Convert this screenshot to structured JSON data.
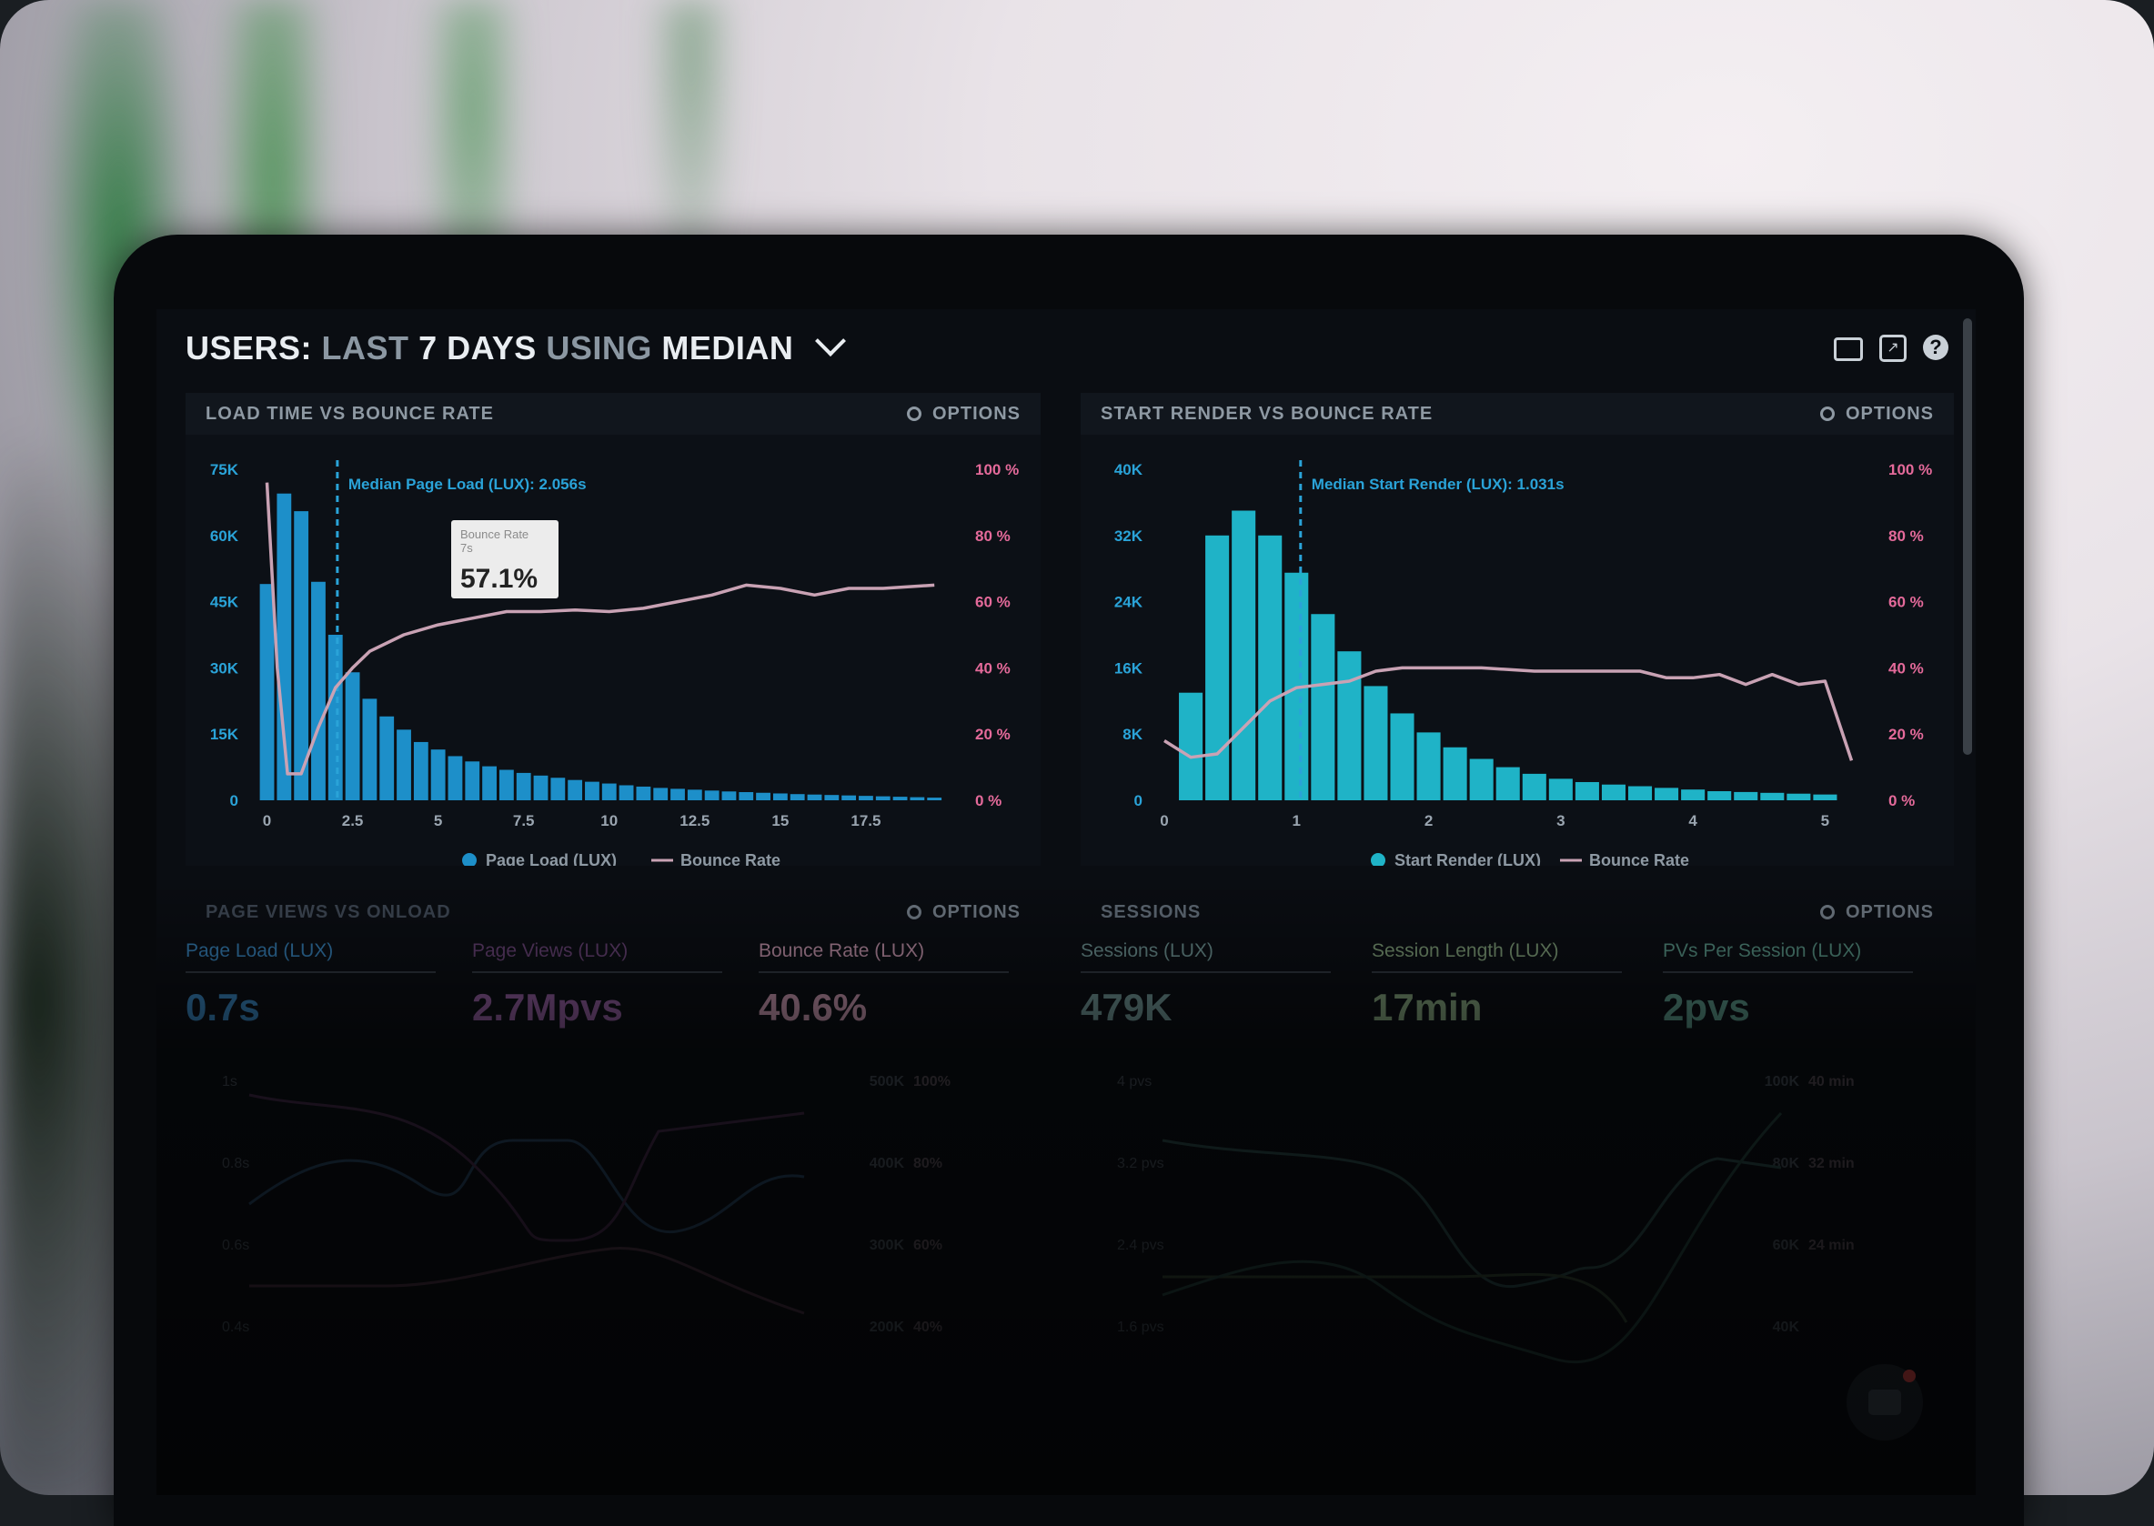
{
  "dashboard": {
    "title_parts": {
      "users": "USERS:",
      "range": "LAST",
      "days": "7 DAYS",
      "using": "USING",
      "median": "MEDIAN"
    }
  },
  "colors": {
    "bar": "#1d8fc9",
    "bar2": "#1fb3c7",
    "line": "#c9a2b4",
    "axis_left": "#2aa3d8",
    "axis_right": "#e46a9a"
  },
  "panels": {
    "load_time": {
      "title": "LOAD TIME VS BOUNCE RATE",
      "options": "OPTIONS",
      "median_label": "Median Page Load (LUX): 2.056s",
      "tooltip": {
        "label": "Bounce Rate",
        "sub": "7s",
        "value": "57.1%"
      },
      "legend": {
        "bars": "Page Load (LUX)",
        "line": "Bounce Rate"
      }
    },
    "start_render": {
      "title": "START RENDER VS BOUNCE RATE",
      "options": "OPTIONS",
      "median_label": "Median Start Render (LUX): 1.031s",
      "legend": {
        "bars": "Start Render (LUX)",
        "line": "Bounce Rate"
      }
    },
    "page_views": {
      "title": "PAGE VIEWS VS ONLOAD",
      "options": "OPTIONS",
      "metrics": [
        {
          "label": "Page Load (LUX)",
          "value": "0.7s",
          "color": "#2f6f9f"
        },
        {
          "label": "Page Views (LUX)",
          "value": "2.7Mpvs",
          "color": "#7a4f86"
        },
        {
          "label": "Bounce Rate (LUX)",
          "value": "40.6%",
          "color": "#a77f93"
        }
      ],
      "y_left": [
        "1s",
        "0.8s",
        "0.6s",
        "0.4s"
      ],
      "y_mid": [
        "500K",
        "400K",
        "300K",
        "200K"
      ],
      "y_right": [
        "100%",
        "80%",
        "60%",
        "40%"
      ]
    },
    "sessions": {
      "title": "SESSIONS",
      "options": "OPTIONS",
      "metrics": [
        {
          "label": "Sessions (LUX)",
          "value": "479K",
          "color": "#5f7f7f"
        },
        {
          "label": "Session Length (LUX)",
          "value": "17min",
          "color": "#6f8a6a"
        },
        {
          "label": "PVs Per Session (LUX)",
          "value": "2pvs",
          "color": "#4c7f73"
        }
      ],
      "y_left": [
        "4 pvs",
        "3.2 pvs",
        "2.4 pvs",
        "1.6 pvs"
      ],
      "y_mid": [
        "100K",
        "80K",
        "60K",
        "40K"
      ],
      "y_right": [
        "40 min",
        "32 min",
        "24 min"
      ]
    }
  },
  "chart_data": [
    {
      "type": "bar",
      "title": "LOAD TIME VS BOUNCE RATE",
      "x_ticks": [
        "0",
        "2.5",
        "5",
        "7.5",
        "10",
        "12.5",
        "15",
        "17.5"
      ],
      "y_left_ticks": [
        "0",
        "15K",
        "30K",
        "45K",
        "60K",
        "75K"
      ],
      "y_right_ticks": [
        "0 %",
        "20 %",
        "40 %",
        "60 %",
        "80 %",
        "100 %"
      ],
      "ylim": [
        0,
        75000
      ],
      "xlim": [
        -0.2,
        20
      ],
      "bar_width": 0.5,
      "bar_x": [
        0,
        0.5,
        1,
        1.5,
        2,
        2.5,
        3,
        3.5,
        4,
        4.5,
        5,
        5.5,
        6,
        6.5,
        7,
        7.5,
        8,
        8.5,
        9,
        9.5,
        10,
        10.5,
        11,
        11.5,
        12,
        12.5,
        13,
        13.5,
        14,
        14.5,
        15,
        15.5,
        16,
        16.5,
        17,
        17.5,
        18,
        18.5,
        19,
        19.5
      ],
      "series": [
        {
          "name": "Page Load (LUX)",
          "kind": "bar",
          "values": [
            49000,
            69500,
            65500,
            49500,
            37500,
            29000,
            23000,
            19000,
            16000,
            13200,
            11500,
            10000,
            8800,
            7700,
            6900,
            6200,
            5600,
            5100,
            4600,
            4200,
            3800,
            3400,
            3100,
            2800,
            2600,
            2400,
            2200,
            2000,
            1850,
            1700,
            1550,
            1400,
            1300,
            1200,
            1100,
            1000,
            900,
            800,
            700,
            600
          ]
        },
        {
          "name": "Bounce Rate",
          "kind": "line",
          "axis": "right",
          "x": [
            0,
            0.3,
            0.6,
            1,
            1.5,
            2,
            2.5,
            3,
            4,
            5,
            6,
            7,
            8,
            9,
            10,
            11,
            12,
            13,
            14,
            15,
            16,
            17,
            18,
            19.5
          ],
          "values": [
            96,
            40,
            8,
            8,
            22,
            34,
            40,
            45,
            50,
            53,
            55,
            57,
            57,
            57.5,
            57,
            58,
            60,
            62,
            65,
            64,
            62,
            64,
            64,
            65
          ]
        }
      ],
      "median_x": 2.056
    },
    {
      "type": "bar",
      "title": "START RENDER VS BOUNCE RATE",
      "x_ticks": [
        "0",
        "1",
        "2",
        "3",
        "4",
        "5"
      ],
      "y_left_ticks": [
        "0",
        "8K",
        "16K",
        "24K",
        "32K",
        "40K"
      ],
      "y_right_ticks": [
        "0 %",
        "20 %",
        "40 %",
        "60 %",
        "80 %",
        "100 %"
      ],
      "ylim": [
        0,
        40000
      ],
      "xlim": [
        0,
        5.3
      ],
      "bar_width": 0.2,
      "bar_x": [
        0.2,
        0.4,
        0.6,
        0.8,
        1.0,
        1.2,
        1.4,
        1.6,
        1.8,
        2.0,
        2.2,
        2.4,
        2.6,
        2.8,
        3.0,
        3.2,
        3.4,
        3.6,
        3.8,
        4.0,
        4.2,
        4.4,
        4.6,
        4.8,
        5.0
      ],
      "series": [
        {
          "name": "Start Render (LUX)",
          "kind": "bar",
          "values": [
            13000,
            32000,
            35000,
            32000,
            27500,
            22500,
            18000,
            13800,
            10500,
            8200,
            6400,
            5000,
            4000,
            3200,
            2600,
            2200,
            1900,
            1700,
            1500,
            1300,
            1100,
            1000,
            900,
            800,
            700
          ]
        },
        {
          "name": "Bounce Rate",
          "kind": "line",
          "axis": "right",
          "x": [
            0,
            0.2,
            0.4,
            0.6,
            0.8,
            1.0,
            1.2,
            1.4,
            1.6,
            1.8,
            2.0,
            2.4,
            2.8,
            3.2,
            3.6,
            3.8,
            4.0,
            4.2,
            4.4,
            4.6,
            4.8,
            5.0,
            5.2
          ],
          "values": [
            18,
            13,
            14,
            22,
            30,
            34,
            35,
            36,
            39,
            40,
            40,
            40,
            39,
            39,
            39,
            37,
            37,
            38,
            35,
            38,
            35,
            36,
            12
          ]
        }
      ],
      "median_x": 1.031
    }
  ]
}
